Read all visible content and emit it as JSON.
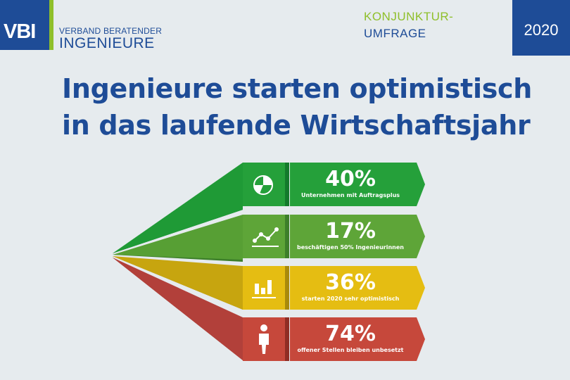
{
  "header": {
    "logo_text": "VBI",
    "org_line1": "VERBAND BERATENDER",
    "org_line2": "INGENIEURE",
    "survey_line1": "KONJUNKTUR-",
    "survey_line2": "UMFRAGE",
    "year": "2020"
  },
  "headline": {
    "line1": "Ingenieure starten optimistisch",
    "line2": "in das laufende Wirtschaftsjahr"
  },
  "items": [
    {
      "value": "40%",
      "caption": "Unternehmen mit Auftragsplus",
      "icon": "pie-chart-icon",
      "color": "#25a03a"
    },
    {
      "value": "17%",
      "caption": "beschäftigen 50% Ingenieurinnen",
      "icon": "line-chart-icon",
      "color": "#5ea538"
    },
    {
      "value": "36%",
      "caption": "starten 2020 sehr optimistisch",
      "icon": "bar-chart-icon",
      "color": "#e5bd12"
    },
    {
      "value": "74%",
      "caption": "offener Stellen bleiben unbesetzt",
      "icon": "person-icon",
      "color": "#c6483b"
    }
  ]
}
